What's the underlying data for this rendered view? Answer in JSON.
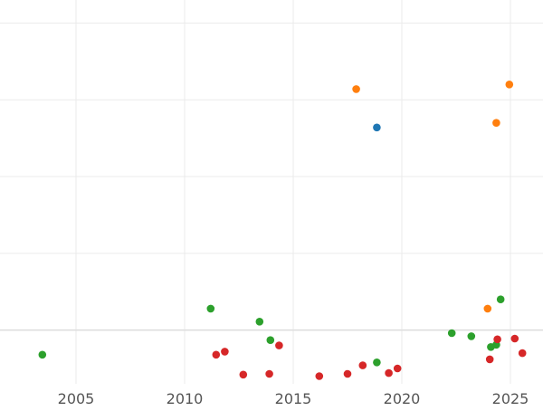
{
  "chart_data": {
    "type": "scatter",
    "title": "",
    "xlabel": "",
    "ylabel": "",
    "x_ticks": [
      "2005",
      "2010",
      "2015",
      "2020",
      "2025"
    ],
    "x_tick_values": [
      2005,
      2010,
      2015,
      2020,
      2025
    ],
    "xlim": [
      2001.5,
      2026.5
    ],
    "ylim": [
      -0.35,
      2.15
    ],
    "y_gridlines": [
      0,
      0.5,
      1,
      1.5,
      2
    ],
    "y_tick_labels_visible": false,
    "grid": true,
    "legend": "none",
    "series": [
      {
        "color": "#1f77b4",
        "points": [
          [
            2018.85,
            1.32
          ]
        ]
      },
      {
        "color": "#ff7f0e",
        "points": [
          [
            2017.9,
            1.57
          ],
          [
            2024.95,
            1.6
          ],
          [
            2024.35,
            1.35
          ],
          [
            2023.95,
            0.14
          ]
        ]
      },
      {
        "color": "#2ca02c",
        "points": [
          [
            2003.45,
            -0.16
          ],
          [
            2011.2,
            0.14
          ],
          [
            2013.45,
            0.055
          ],
          [
            2013.95,
            -0.065
          ],
          [
            2018.85,
            -0.21
          ],
          [
            2022.3,
            -0.02
          ],
          [
            2023.2,
            -0.04
          ],
          [
            2024.1,
            -0.11
          ],
          [
            2024.35,
            -0.095
          ],
          [
            2024.55,
            0.2
          ]
        ]
      },
      {
        "color": "#d62728",
        "points": [
          [
            2011.45,
            -0.16
          ],
          [
            2011.85,
            -0.14
          ],
          [
            2012.7,
            -0.29
          ],
          [
            2013.9,
            -0.285
          ],
          [
            2014.35,
            -0.1
          ],
          [
            2016.2,
            -0.3
          ],
          [
            2017.5,
            -0.285
          ],
          [
            2018.2,
            -0.23
          ],
          [
            2019.4,
            -0.28
          ],
          [
            2019.8,
            -0.25
          ],
          [
            2024.05,
            -0.19
          ],
          [
            2024.4,
            -0.06
          ],
          [
            2025.2,
            -0.055
          ],
          [
            2025.55,
            -0.15
          ]
        ]
      }
    ]
  }
}
